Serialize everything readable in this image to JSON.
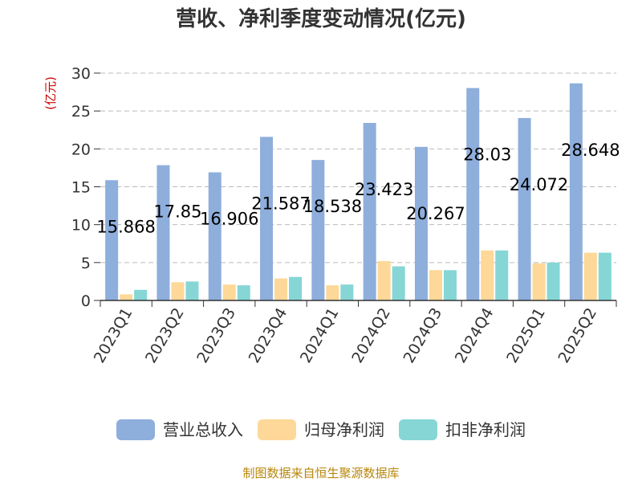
{
  "chart_data": {
    "type": "bar",
    "title": "营收、净利季度变动情况(亿元)",
    "ylabel": "(亿元)",
    "xlabel": "",
    "ylim": [
      0,
      30
    ],
    "yticks": [
      0,
      5,
      10,
      15,
      20,
      25,
      30
    ],
    "grid": true,
    "legend_position": "bottom",
    "categories": [
      "2023Q1",
      "2023Q2",
      "2023Q3",
      "2023Q4",
      "2024Q1",
      "2024Q2",
      "2024Q3",
      "2024Q4",
      "2025Q1",
      "2025Q2"
    ],
    "series": [
      {
        "name": "营业总收入",
        "color": "#8eaedc",
        "values": [
          15.868,
          17.85,
          16.906,
          21.587,
          18.538,
          23.423,
          20.267,
          28.03,
          24.072,
          28.648
        ],
        "show_labels": true
      },
      {
        "name": "归母净利润",
        "color": "#fdd898",
        "values": [
          0.8,
          2.4,
          2.1,
          2.9,
          2.0,
          5.2,
          4.0,
          6.6,
          4.9,
          6.3
        ],
        "show_labels": false
      },
      {
        "name": "扣非净利润",
        "color": "#86d6d6",
        "values": [
          1.4,
          2.5,
          2.0,
          3.1,
          2.1,
          4.5,
          4.0,
          6.6,
          5.0,
          6.3
        ],
        "show_labels": false
      }
    ],
    "source": "制图数据来自恒生聚源数据库"
  }
}
